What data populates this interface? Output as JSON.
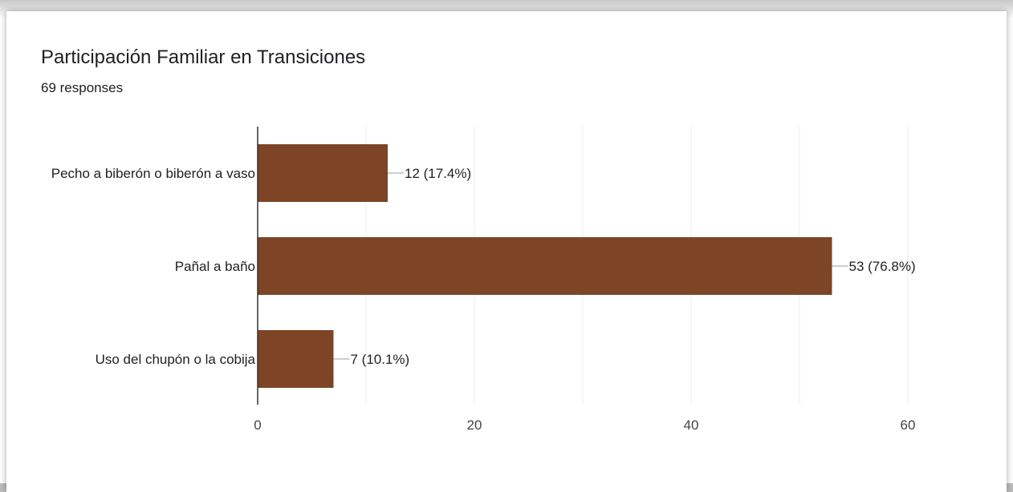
{
  "header": {
    "title": "Participación Familiar en Transiciones",
    "responses": "69 responses"
  },
  "colors": {
    "bar": "#7d4425",
    "grid": "#ebebeb",
    "axis": "#333333",
    "text": "#202124",
    "tick": "#444444"
  },
  "chart_data": {
    "type": "bar",
    "orientation": "horizontal",
    "title": "Participación Familiar en Transiciones",
    "subtitle": "69 responses",
    "categories": [
      "Pecho a biberón o biberón a vaso",
      "Pañal a baño",
      "Uso del chupón o la cobija"
    ],
    "values": [
      12,
      53,
      7
    ],
    "data_labels": [
      "12 (17.4%)",
      "53 (76.8%)",
      "7 (10.1%)"
    ],
    "xlim": [
      0,
      60
    ],
    "xticks": [
      0,
      20,
      40,
      60
    ],
    "grid": true,
    "legend": "none"
  }
}
